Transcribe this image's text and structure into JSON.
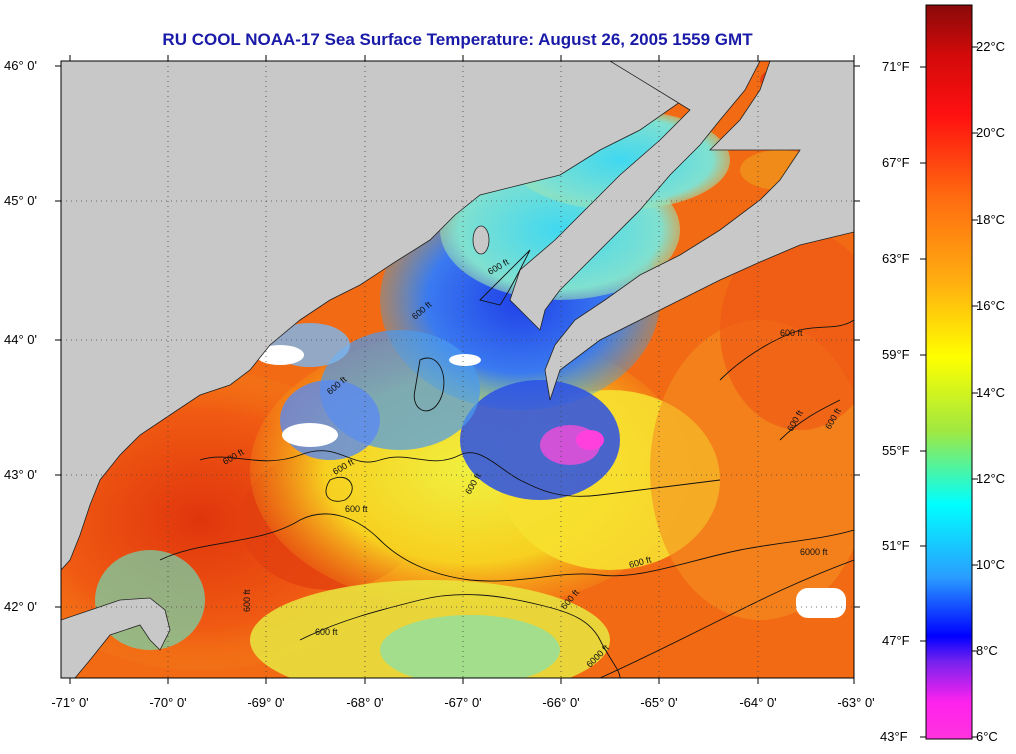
{
  "title": "RU COOL  NOAA-17  Sea Surface Temperature:  August 26, 2005 1559 GMT",
  "map": {
    "latitudes": [
      "46° 0'",
      "45° 0'",
      "44° 0'",
      "43° 0'",
      "42° 0'"
    ],
    "longitudes": [
      "-71° 0'",
      "-70° 0'",
      "-69° 0'",
      "-68° 0'",
      "-67° 0'",
      "-66° 0'",
      "-65° 0'",
      "-64° 0'",
      "-63° 0'"
    ],
    "contour_labels": [
      "600 ft",
      "6000 ft"
    ]
  },
  "colorbar": {
    "celsius": [
      "22°C",
      "20°C",
      "18°C",
      "16°C",
      "14°C",
      "12°C",
      "10°C",
      "8°C",
      "6°C"
    ],
    "fahrenheit": [
      "71°F",
      "67°F",
      "63°F",
      "59°F",
      "55°F",
      "51°F",
      "47°F",
      "43°F"
    ]
  },
  "colors": {
    "land": "#c8c8c8",
    "title": "#1a1aa8",
    "warm_water": "#e64a10",
    "cool_water": "#2a70f0",
    "magenta": "#ff22cc"
  }
}
